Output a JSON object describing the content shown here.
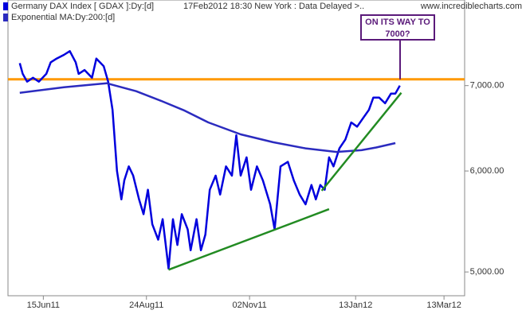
{
  "chart_data": {
    "type": "line",
    "log_scale": true,
    "title": "Germany DAX Index [ GDAX ]:Dy:[d]",
    "subtitle": "17Feb2012 18:30 New York : Data Delayed >..",
    "source": "www.incrediblecharts.com",
    "xlim": [
      "22May11",
      "27Mar12"
    ],
    "xticks": [
      "15Jun11",
      "24Aug11",
      "02Nov11",
      "13Jan12",
      "13Mar12"
    ],
    "ylim": [
      4790,
      8170
    ],
    "yticks": [
      {
        "value": 5000,
        "label": "5,000.00"
      },
      {
        "value": 6000,
        "label": "6,000.00"
      },
      {
        "value": 7000,
        "label": "7,000.00"
      }
    ],
    "series": [
      {
        "name": "Germany DAX Index [ GDAX ]:Dy:[d]",
        "color": "#0000dd",
        "x": [
          "30May11",
          "01Jun11",
          "04Jun11",
          "08Jun11",
          "12Jun11",
          "17Jun11",
          "20Jun11",
          "24Jun11",
          "29Jun11",
          "03Jul11",
          "07Jul11",
          "09Jul11",
          "13Jul11",
          "18Jul11",
          "21Jul11",
          "26Jul11",
          "29Jul11",
          "01Aug11",
          "04Aug11",
          "07Aug11",
          "09Aug11",
          "12Aug11",
          "15Aug11",
          "19Aug11",
          "22Aug11",
          "25Aug11",
          "28Aug11",
          "01Sep11",
          "04Sep11",
          "08Sep11",
          "11Sep11",
          "14Sep11",
          "17Sep11",
          "21Sep11",
          "23Sep11",
          "27Sep11",
          "30Sep11",
          "03Oct11",
          "06Oct11",
          "10Oct11",
          "13Oct11",
          "17Oct11",
          "21Oct11",
          "24Oct11",
          "27Oct11",
          "31Oct11",
          "03Nov11",
          "07Nov11",
          "11Nov11",
          "16Nov11",
          "19Nov11",
          "23Nov11",
          "28Nov11",
          "02Dec11",
          "06Dec11",
          "10Dec11",
          "14Dec11",
          "17Dec11",
          "20Dec11",
          "23Dec11",
          "26Dec11",
          "29Dec11",
          "02Jan12",
          "06Jan12",
          "10Jan12",
          "14Jan12",
          "18Jan12",
          "22Jan12",
          "25Jan12",
          "29Jan12",
          "02Feb12",
          "06Feb12",
          "09Feb12",
          "12Feb12"
        ],
        "values": [
          7290,
          7150,
          7050,
          7100,
          7050,
          7150,
          7300,
          7350,
          7400,
          7450,
          7300,
          7150,
          7200,
          7100,
          7350,
          7250,
          7050,
          6700,
          6000,
          5700,
          5900,
          6050,
          5950,
          5700,
          5550,
          5800,
          5450,
          5300,
          5500,
          5030,
          5500,
          5250,
          5550,
          5400,
          5200,
          5500,
          5200,
          5350,
          5800,
          5950,
          5750,
          6050,
          5950,
          6400,
          5950,
          6150,
          5800,
          6050,
          5900,
          5650,
          5400,
          6050,
          6100,
          5900,
          5750,
          5650,
          5850,
          5700,
          5850,
          5800,
          6150,
          6050,
          6250,
          6350,
          6550,
          6500,
          6600,
          6700,
          6850,
          6850,
          6780,
          6900,
          6900,
          7000
        ]
      },
      {
        "name": "Exponential MA:Dy:200:[d]",
        "color": "#2b2bbf",
        "x": [
          "30May11",
          "29Jun11",
          "28Jul11",
          "17Aug11",
          "03Sep11",
          "19Sep11",
          "05Oct11",
          "27Oct11",
          "18Nov11",
          "10Dec11",
          "31Dec11",
          "17Jan12",
          "27Jan12",
          "09Feb12"
        ],
        "values": [
          6910,
          6980,
          7030,
          6930,
          6810,
          6690,
          6550,
          6410,
          6320,
          6250,
          6210,
          6230,
          6260,
          6310
        ]
      }
    ],
    "reference_line": {
      "value": 7080,
      "color": "#ff9900"
    },
    "trendlines": [
      {
        "x": [
          "08Sep11",
          "26Dec11"
        ],
        "values": [
          5020,
          5600
        ],
        "color": "#228b22"
      },
      {
        "x": [
          "21Dec11",
          "13Feb12"
        ],
        "values": [
          5790,
          6910
        ],
        "color": "#228b22"
      }
    ],
    "note": {
      "text": "ON ITS WAY TO 7000?",
      "color": "#5b1a7a"
    }
  }
}
